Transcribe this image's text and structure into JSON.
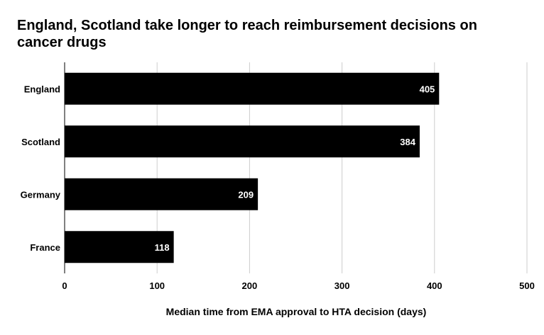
{
  "chart_data": {
    "type": "bar",
    "orientation": "horizontal",
    "title": "England, Scotland take longer to reach reimbursement decisions on cancer drugs",
    "xlabel": "Median time from EMA approval to HTA decision (days)",
    "ylabel": "",
    "categories": [
      "England",
      "Scotland",
      "Germany",
      "France"
    ],
    "values": [
      405,
      384,
      209,
      118
    ],
    "xlim": [
      0,
      500
    ],
    "xticks": [
      0,
      100,
      200,
      300,
      400,
      500
    ],
    "xtick_labels": [
      "0",
      "100",
      "200",
      "300",
      "400",
      "500"
    ],
    "data_labels": [
      "405",
      "384",
      "209",
      "118"
    ],
    "grid": true,
    "legend": "none",
    "bar_color": "#000000",
    "label_color": "#ffffff",
    "grid_color": "#cccccc"
  }
}
